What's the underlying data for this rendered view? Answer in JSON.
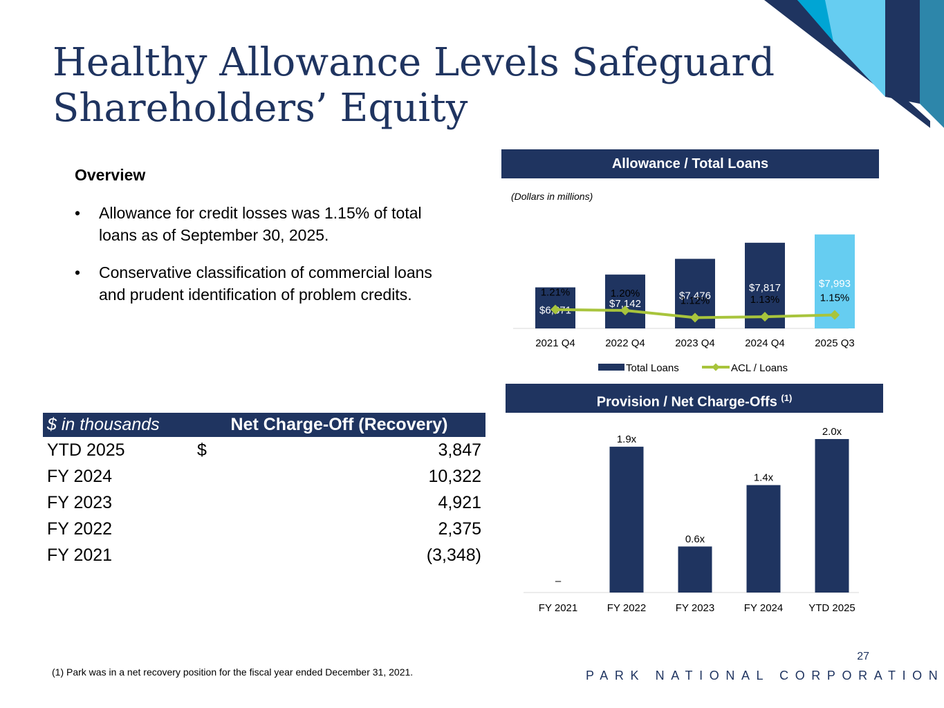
{
  "title": {
    "line1": "Healthy Allowance Levels Safeguard",
    "line2": "Shareholders’ Equity"
  },
  "overview": {
    "heading": "Overview",
    "bullet_char": "•",
    "bullets": [
      "Allowance for credit losses was 1.15% of total loans as of September 30, 2025.",
      "Conservative classification of commercial loans and prudent identification of problem credits."
    ]
  },
  "allowance_panel": {
    "header": "Allowance / Total Loans",
    "units_note": "(Dollars in millions)"
  },
  "provision_panel": {
    "header": "Provision / Net Charge-Offs",
    "header_sup": "(1)"
  },
  "nco_table": {
    "unit_header": "$ in thousands",
    "column_header": "Net Charge-Off (Recovery)",
    "rows": [
      {
        "period": "YTD 2025",
        "currency": "$",
        "value": "3,847"
      },
      {
        "period": "FY 2024",
        "currency": "",
        "value": "10,322"
      },
      {
        "period": "FY 2023",
        "currency": "",
        "value": "4,921"
      },
      {
        "period": "FY 2022",
        "currency": "",
        "value": "2,375"
      },
      {
        "period": "FY 2021",
        "currency": "",
        "value": "(3,348)"
      }
    ]
  },
  "footnote": "(1)    Park was in a net recovery position for the fiscal year ended December 31, 2021.",
  "page_number": "27",
  "company": "PARK NATIONAL CORPORATION",
  "colors": {
    "navy": "#1f3460",
    "light_blue": "#66cdf1",
    "line_green": "#a8c43c",
    "teal": "#2d86aa",
    "cyan": "#00a5d4"
  },
  "chart_data": [
    {
      "type": "bar",
      "title": "Allowance / Total Loans",
      "categories": [
        "2021 Q4",
        "2022 Q4",
        "2023 Q4",
        "2024 Q4",
        "2025 Q3"
      ],
      "series": [
        {
          "name": "Total Loans",
          "values": [
            6871,
            7142,
            7476,
            7817,
            7993
          ],
          "labels": [
            "$6,871",
            "$7,142",
            "$7,476",
            "$7,817",
            "$7,993"
          ],
          "highlight_last": true
        },
        {
          "name": "ACL / Loans",
          "kind": "line",
          "values": [
            1.21,
            1.2,
            1.12,
            1.13,
            1.15
          ],
          "labels": [
            "1.21%",
            "1.20%",
            "1.12%",
            "1.13%",
            "1.15%"
          ]
        }
      ],
      "ylim_bars": [
        6000,
        8200
      ],
      "ylim_line": [
        0.0,
        2.0
      ],
      "legend": "bottom"
    },
    {
      "type": "bar",
      "title": "Provision / Net Charge-Offs",
      "categories": [
        "FY 2021",
        "FY 2022",
        "FY 2023",
        "FY 2024",
        "YTD 2025"
      ],
      "values": [
        0,
        1.9,
        0.6,
        1.4,
        2.0
      ],
      "labels": [
        "–",
        "1.9x",
        "0.6x",
        "1.4x",
        "2.0x"
      ],
      "ylim": [
        0,
        2.0
      ]
    }
  ]
}
